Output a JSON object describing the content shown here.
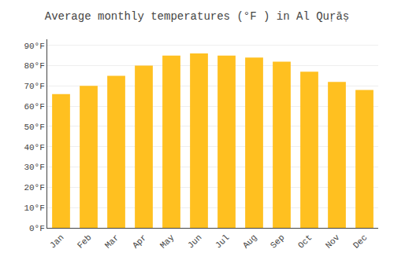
{
  "chart_data": {
    "type": "bar",
    "title": "Average monthly temperatures (°F ) in Al Quṛāṣ",
    "categories": [
      "Jan",
      "Feb",
      "Mar",
      "Apr",
      "May",
      "Jun",
      "Jul",
      "Aug",
      "Sep",
      "Oct",
      "Nov",
      "Dec"
    ],
    "values": [
      66,
      70,
      75,
      80,
      85,
      86,
      85,
      84,
      82,
      77,
      72,
      68
    ],
    "color": "#FFC020",
    "ylim": [
      0,
      93
    ],
    "yticks": [
      {
        "value": 0,
        "label": "0°F"
      },
      {
        "value": 10,
        "label": "10°F"
      },
      {
        "value": 20,
        "label": "20°F"
      },
      {
        "value": 30,
        "label": "30°F"
      },
      {
        "value": 40,
        "label": "40°F"
      },
      {
        "value": 50,
        "label": "50°F"
      },
      {
        "value": 60,
        "label": "60°F"
      },
      {
        "value": 70,
        "label": "70°F"
      },
      {
        "value": 80,
        "label": "80°F"
      },
      {
        "value": 90,
        "label": "90°F"
      }
    ],
    "grid": true
  }
}
